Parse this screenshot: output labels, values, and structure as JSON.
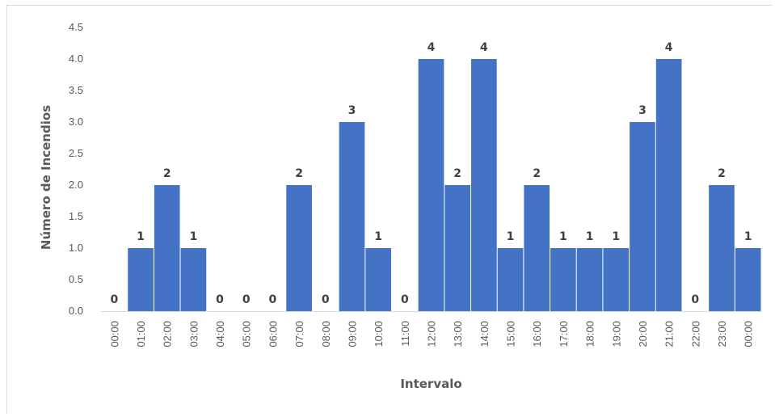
{
  "chart_data": {
    "type": "bar",
    "title": "",
    "xlabel": "Intervalo",
    "ylabel": "Número de Incendios",
    "ylim": [
      0,
      4.5
    ],
    "ytick_step": 0.5,
    "ytick_labels": [
      "0.0",
      "0.5",
      "1.0",
      "1.5",
      "2.0",
      "2.5",
      "3.0",
      "3.5",
      "4.0",
      "4.5"
    ],
    "grid": false,
    "legend": "none",
    "bar_color": "#4472c4",
    "categories": [
      "00:00",
      "01:00",
      "02:00",
      "03:00",
      "04:00",
      "05:00",
      "06:00",
      "07:00",
      "08:00",
      "09:00",
      "10:00",
      "11:00",
      "12:00",
      "13:00",
      "14:00",
      "15:00",
      "16:00",
      "17:00",
      "18:00",
      "19:00",
      "20:00",
      "21:00",
      "22:00",
      "23:00",
      "00:00"
    ],
    "values": [
      0,
      1,
      2,
      1,
      0,
      0,
      0,
      2,
      0,
      3,
      1,
      0,
      4,
      2,
      4,
      1,
      2,
      1,
      1,
      1,
      3,
      4,
      0,
      2,
      1
    ]
  }
}
